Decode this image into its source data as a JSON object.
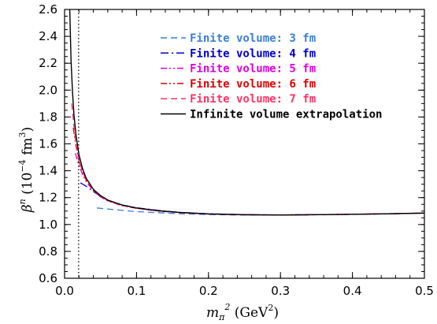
{
  "chart_data": {
    "type": "line",
    "xlabel": "m_π² (GeV²)",
    "ylabel": "βⁿ (10⁻⁴ fm³)",
    "xlim": [
      0.0,
      0.5
    ],
    "ylim": [
      0.6,
      2.6
    ],
    "x_ticks": [
      "0.0",
      "0.1",
      "0.2",
      "0.3",
      "0.4",
      "0.5"
    ],
    "y_ticks": [
      "0.6",
      "0.8",
      "1.0",
      "1.2",
      "1.4",
      "1.6",
      "1.8",
      "2.0",
      "2.2",
      "2.4",
      "2.6"
    ],
    "vertical_marker_x": 0.0195,
    "legend_position": "top-right",
    "grid": false,
    "series": [
      {
        "name": "Finite volume: 3 fm",
        "color": "#3a7fd6",
        "dash": "dashed",
        "x": [
          0.045,
          0.06,
          0.08,
          0.1,
          0.13,
          0.16,
          0.2,
          0.25,
          0.3,
          0.35,
          0.4,
          0.45,
          0.5
        ],
        "values": [
          1.123,
          1.115,
          1.105,
          1.096,
          1.088,
          1.08,
          1.074,
          1.07,
          1.07,
          1.072,
          1.075,
          1.079,
          1.085
        ]
      },
      {
        "name": "Finite volume: 4 fm",
        "color": "#0000cc",
        "dash": "dashdot",
        "x": [
          0.022,
          0.03,
          0.04,
          0.05,
          0.06,
          0.08,
          0.1,
          0.13,
          0.16,
          0.2,
          0.25,
          0.3,
          0.35,
          0.4,
          0.45,
          0.5
        ],
        "values": [
          1.31,
          1.285,
          1.245,
          1.21,
          1.18,
          1.145,
          1.125,
          1.105,
          1.09,
          1.08,
          1.073,
          1.071,
          1.073,
          1.076,
          1.08,
          1.085
        ]
      },
      {
        "name": "Finite volume: 5 fm",
        "color": "#e000e0",
        "dash": "dashdotdot",
        "x": [
          0.015,
          0.02,
          0.025,
          0.03,
          0.04,
          0.05,
          0.06,
          0.08,
          0.1,
          0.13,
          0.16,
          0.2,
          0.25,
          0.3,
          0.35,
          0.4,
          0.45,
          0.5
        ],
        "values": [
          1.53,
          1.44,
          1.37,
          1.32,
          1.25,
          1.205,
          1.175,
          1.14,
          1.12,
          1.1,
          1.088,
          1.078,
          1.072,
          1.071,
          1.073,
          1.076,
          1.08,
          1.085
        ]
      },
      {
        "name": "Finite volume: 6 fm",
        "color": "#e00000",
        "dash": "dashdotdot",
        "x": [
          0.012,
          0.016,
          0.02,
          0.025,
          0.03,
          0.04,
          0.05,
          0.06,
          0.08,
          0.1,
          0.13,
          0.16,
          0.2,
          0.25,
          0.3,
          0.35,
          0.4,
          0.45,
          0.5
        ],
        "values": [
          1.72,
          1.58,
          1.47,
          1.39,
          1.33,
          1.255,
          1.21,
          1.178,
          1.142,
          1.121,
          1.101,
          1.089,
          1.078,
          1.072,
          1.071,
          1.073,
          1.076,
          1.08,
          1.085
        ]
      },
      {
        "name": "Finite volume: 7 fm",
        "color": "#ff3366",
        "dash": "dashed",
        "x": [
          0.01,
          0.013,
          0.016,
          0.02,
          0.025,
          0.03,
          0.04,
          0.05,
          0.06,
          0.08,
          0.1,
          0.13,
          0.16,
          0.2,
          0.25,
          0.3,
          0.35,
          0.4,
          0.45,
          0.5
        ],
        "values": [
          1.9,
          1.73,
          1.6,
          1.48,
          1.395,
          1.335,
          1.258,
          1.212,
          1.18,
          1.143,
          1.122,
          1.102,
          1.089,
          1.078,
          1.072,
          1.071,
          1.073,
          1.076,
          1.08,
          1.085
        ]
      },
      {
        "name": "Infinite volume extrapolation",
        "color": "#000000",
        "dash": "solid",
        "x": [
          0.0072,
          0.009,
          0.011,
          0.013,
          0.016,
          0.02,
          0.025,
          0.03,
          0.04,
          0.05,
          0.06,
          0.08,
          0.1,
          0.13,
          0.16,
          0.2,
          0.25,
          0.3,
          0.35,
          0.4,
          0.45,
          0.5
        ],
        "values": [
          2.6,
          2.22,
          1.99,
          1.82,
          1.66,
          1.52,
          1.415,
          1.345,
          1.262,
          1.215,
          1.182,
          1.145,
          1.123,
          1.103,
          1.09,
          1.079,
          1.073,
          1.071,
          1.073,
          1.076,
          1.08,
          1.085
        ]
      }
    ]
  }
}
